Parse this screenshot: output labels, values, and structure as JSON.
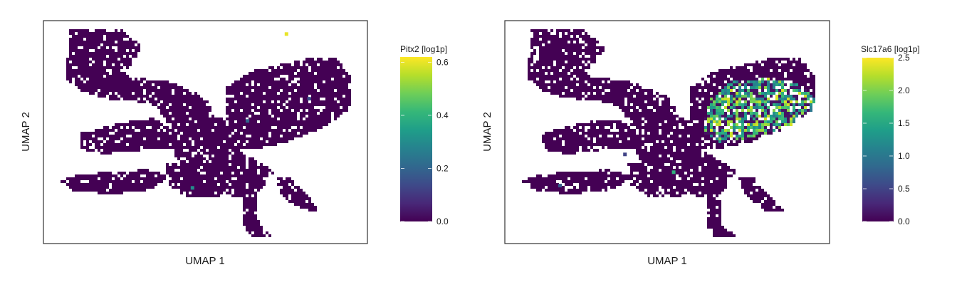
{
  "palette": {
    "viridis": [
      "#440154",
      "#482878",
      "#3e4a89",
      "#31688e",
      "#26828e",
      "#1f9e89",
      "#35b779",
      "#6ece58",
      "#b5de2b",
      "#fde725"
    ],
    "background": "#ffffff",
    "frame": "#333333"
  },
  "chart_data": [
    {
      "type": "scatter",
      "title": "",
      "xlabel": "UMAP 1",
      "ylabel": "UMAP 2",
      "grid": false,
      "colorbar": {
        "label": "Pitx2 [log1p]",
        "min": 0.0,
        "max": 0.62,
        "ticks": [
          0.0,
          0.2,
          0.4,
          0.6
        ],
        "tick_labels": [
          "0.0",
          "0.2",
          "0.4",
          "0.6"
        ],
        "colormap": "viridis"
      },
      "expression_pattern": "near zero everywhere; a few isolated cells at 0.2-0.6",
      "highlight_points": [
        {
          "x": 0.75,
          "y": 0.94,
          "value": 0.6
        },
        {
          "x": 0.46,
          "y": 0.25,
          "value": 0.3
        },
        {
          "x": 0.63,
          "y": 0.55,
          "value": 0.2
        },
        {
          "x": 0.82,
          "y": 0.65,
          "value": 0.15
        }
      ]
    },
    {
      "type": "scatter",
      "title": "",
      "xlabel": "UMAP 1",
      "ylabel": "UMAP 2",
      "grid": false,
      "colorbar": {
        "label": "Slc17a6 [log1p]",
        "min": 0.0,
        "max": 2.5,
        "ticks": [
          0.0,
          0.5,
          1.0,
          1.5,
          2.0,
          2.5
        ],
        "tick_labels": [
          "0.0",
          "0.5",
          "1.0",
          "1.5",
          "2.0",
          "2.5"
        ],
        "colormap": "viridis"
      },
      "expression_pattern": "high (1.0-2.5) in the upper-right cluster, near zero elsewhere",
      "highlight_points": [
        {
          "x": 0.52,
          "y": 0.32,
          "value": 1.6
        },
        {
          "x": 0.17,
          "y": 0.26,
          "value": 0.7
        },
        {
          "x": 0.37,
          "y": 0.4,
          "value": 0.5
        }
      ]
    }
  ]
}
